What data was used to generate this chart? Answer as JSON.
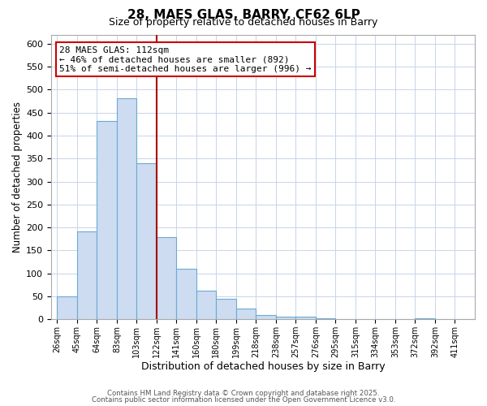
{
  "title": "28, MAES GLAS, BARRY, CF62 6LP",
  "subtitle": "Size of property relative to detached houses in Barry",
  "xlabel": "Distribution of detached houses by size in Barry",
  "ylabel": "Number of detached properties",
  "bar_labels": [
    "26sqm",
    "45sqm",
    "64sqm",
    "83sqm",
    "103sqm",
    "122sqm",
    "141sqm",
    "160sqm",
    "180sqm",
    "199sqm",
    "218sqm",
    "238sqm",
    "257sqm",
    "276sqm",
    "295sqm",
    "315sqm",
    "334sqm",
    "353sqm",
    "372sqm",
    "392sqm",
    "411sqm"
  ],
  "bar_values": [
    50,
    192,
    432,
    481,
    340,
    179,
    110,
    62,
    44,
    24,
    10,
    6,
    6,
    2,
    0,
    0,
    0,
    0,
    2,
    0,
    0
  ],
  "bar_color": "#cddcf0",
  "bar_edge_color": "#6aaad4",
  "vline_pos": 5,
  "vline_color": "#aa0000",
  "annotation_title": "28 MAES GLAS: 112sqm",
  "annotation_line1": "← 46% of detached houses are smaller (892)",
  "annotation_line2": "51% of semi-detached houses are larger (996) →",
  "annotation_box_facecolor": "#ffffff",
  "annotation_box_edgecolor": "#cc0000",
  "ylim": [
    0,
    620
  ],
  "yticks": [
    0,
    50,
    100,
    150,
    200,
    250,
    300,
    350,
    400,
    450,
    500,
    550,
    600
  ],
  "footer1": "Contains HM Land Registry data © Crown copyright and database right 2025.",
  "footer2": "Contains public sector information licensed under the Open Government Licence v3.0.",
  "bg_color": "#ffffff",
  "grid_color": "#c8d4e8"
}
